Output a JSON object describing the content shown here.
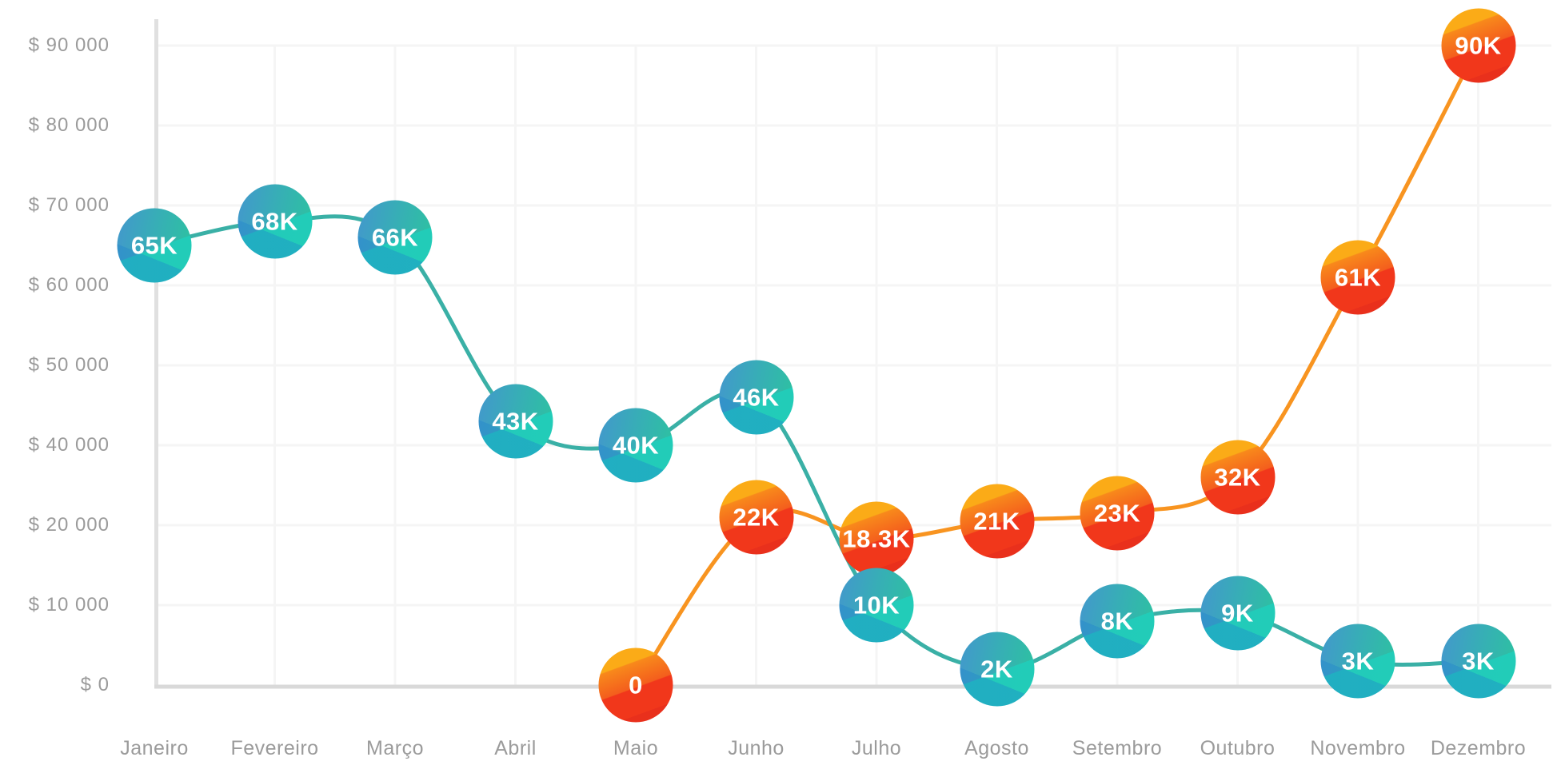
{
  "chart_data": {
    "type": "line",
    "title": "",
    "categories": [
      "Janeiro",
      "Fevereiro",
      "Março",
      "Abril",
      "Maio",
      "Junho",
      "Julho",
      "Agosto",
      "Setembro",
      "Outubro",
      "Novembro",
      "Dezembro"
    ],
    "y_axis": {
      "tick_labels": [
        "$ 90 000",
        "$ 80 000",
        "$ 70 000",
        "$ 60 000",
        "$ 50 000",
        "$ 40 000",
        "$ 20 000",
        "$ 10 000",
        "$ 0"
      ],
      "tick_values": [
        90000,
        80000,
        70000,
        60000,
        50000,
        40000,
        20000,
        10000,
        0
      ],
      "grid": true
    },
    "x_axis": {
      "grid": true
    },
    "legend": null,
    "series": [
      {
        "name": "series-orange",
        "z": 1,
        "start_month_index": 4,
        "values": [
          0,
          22000,
          18300,
          21000,
          23000,
          32000,
          61000,
          90000
        ],
        "point_labels": [
          "0",
          "22K",
          "18.3K",
          "21K",
          "23K",
          "32K",
          "61K",
          "90K"
        ],
        "line_color": "#F89420"
      },
      {
        "name": "series-teal",
        "z": 2,
        "start_month_index": 0,
        "values": [
          65000,
          68000,
          66000,
          43000,
          40000,
          46000,
          10000,
          2000,
          8000,
          9000,
          3000,
          3000
        ],
        "point_labels": [
          "65K",
          "68K",
          "66K",
          "43K",
          "40K",
          "46K",
          "10K",
          "2K",
          "8K",
          "9K",
          "3K",
          "3K"
        ],
        "line_color": "#3AB0A6"
      }
    ]
  },
  "colors": {
    "background": "#FFFFFF",
    "grid_line": "#F5F5F5",
    "axis_bar": "#E0E0E0",
    "axis_baseline": "#D9D9D9",
    "tick_text": "#9B9B9B",
    "marker_text": "#FFFFFF",
    "teal_marker_from": "#4397CD",
    "teal_marker_to": "#2CC49E",
    "teal_marker_band": "#21CDBA",
    "orange_marker_from": "#FBAB17",
    "orange_marker_to": "#F1371B"
  }
}
